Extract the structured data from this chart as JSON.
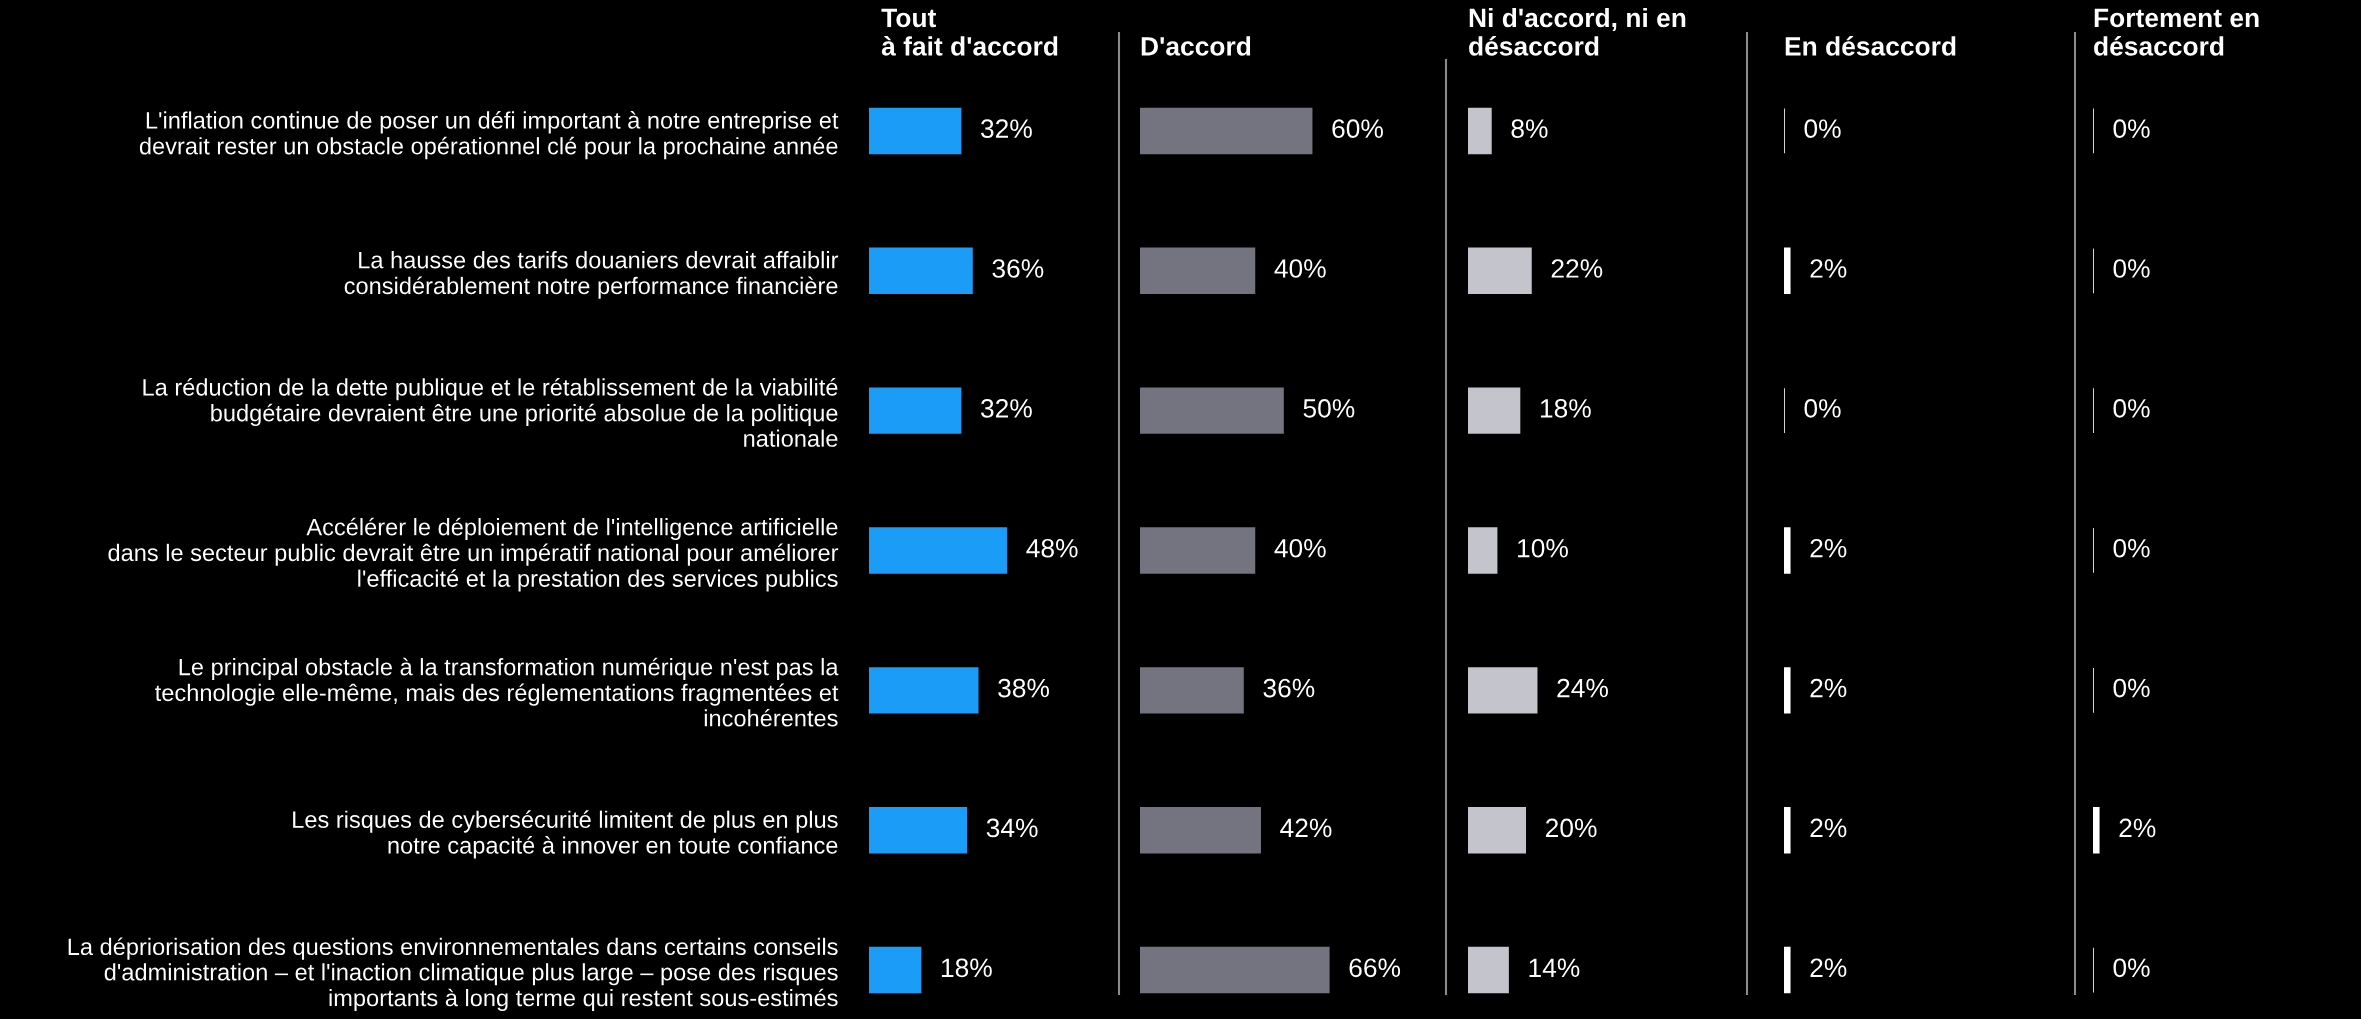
{
  "chart_data": [
    {
      "type": "bar",
      "orientation": "horizontal",
      "title": "Tout\nà fait d'accord",
      "tick_labels": "y",
      "color": "#1a9cf7",
      "categories": [
        "L'inflation continue de poser un défi important à notre entreprise et\ndevrait rester un obstacle opérationnel clé pour la prochaine année",
        "La hausse des tarifs douaniers devrait affaiblir\nconsidérablement notre performance financière",
        "La réduction de la dette publique et le rétablissement de la viabilité\nbudgétaire devraient être une priorité absolue de la politique\nnationale",
        "Accélérer le déploiement de l'intelligence artificielle\ndans le secteur public devrait être un impératif national pour améliorer\nl'efficacité et la prestation des services publics",
        "Le principal obstacle à la transformation numérique n'est pas la\ntechnologie elle-même, mais des réglementations fragmentées et\nincohérentes",
        "Les risques de cybersécurité limitent de plus en plus\nnotre capacité à innover en toute confiance",
        "La dépriorisation des questions environnementales dans certains conseils\nd'administration – et l'inaction climatique plus large – pose des risques\nimportants à long terme qui restent sous-estimés"
      ],
      "values": [
        32,
        36,
        32,
        48,
        38,
        34,
        18
      ],
      "value_labels": [
        "32%",
        "36%",
        "32%",
        "48%",
        "38%",
        "34%",
        "18%"
      ]
    },
    {
      "type": "bar",
      "orientation": "horizontal",
      "title": "D'accord",
      "tick_labels": false,
      "color": "#747480",
      "categories": [
        null,
        null,
        null,
        null,
        null,
        null,
        null
      ],
      "values": [
        60,
        40,
        50,
        40,
        36,
        42,
        66
      ],
      "value_labels": [
        "60%",
        "40%",
        "50%",
        "40%",
        "36%",
        "42%",
        "66%"
      ]
    },
    {
      "type": "bar",
      "orientation": "horizontal",
      "title": "Ni d'accord, ni en\ndésaccord",
      "tick_labels": false,
      "color": "#c4c4cd",
      "categories": [
        null,
        null,
        null,
        null,
        null,
        null,
        null
      ],
      "values": [
        8,
        22,
        18,
        10,
        24,
        20,
        14
      ],
      "value_labels": [
        "8%",
        "22%",
        "18%",
        "10%",
        "24%",
        "20%",
        "14%"
      ]
    },
    {
      "type": "bar",
      "orientation": "horizontal",
      "title": "En désaccord",
      "tick_labels": false,
      "color": "#ffffff",
      "categories": [
        null,
        null,
        null,
        null,
        null,
        null,
        null
      ],
      "values": [
        0,
        2,
        0,
        2,
        2,
        2,
        2
      ],
      "value_labels": [
        "0%",
        "2%",
        "0%",
        "2%",
        "2%",
        "2%",
        "2%"
      ]
    },
    {
      "type": "bar",
      "orientation": "horizontal",
      "title": "Fortement en\ndésaccord",
      "tick_labels": false,
      "color": "#ffffff",
      "categories": [
        null,
        null,
        null,
        null,
        null,
        null,
        null
      ],
      "values": [
        0,
        0,
        0,
        0,
        0,
        2,
        0
      ],
      "value_labels": [
        "0%",
        "0%",
        "0%",
        "0%",
        "0%",
        "2%",
        "0%"
      ]
    }
  ]
}
